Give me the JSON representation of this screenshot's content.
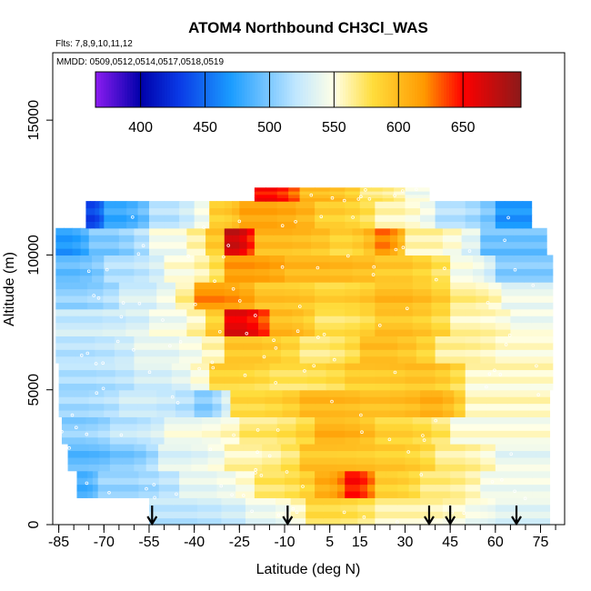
{
  "chart_data": {
    "type": "heatmap",
    "title": "ATOM4 Northbound CH3Cl_WAS",
    "annotations": {
      "flights": "Flts: 7,8,9,10,11,12",
      "dates": "MMDD: 0509,0512,0514,0517,0518,0519"
    },
    "xlabel": "Latitude (deg N)",
    "ylabel": "Altitude (m)",
    "xlim": [
      -87,
      83
    ],
    "ylim": [
      0,
      17500
    ],
    "x_ticks": [
      -85,
      -70,
      -55,
      -40,
      -25,
      -10,
      5,
      15,
      30,
      45,
      60,
      75
    ],
    "x_tick_labels": [
      "-85",
      "-70",
      "-55",
      "-40",
      "-25",
      "-10",
      "5",
      "15",
      "30",
      "45",
      "60",
      "75"
    ],
    "x_minor_step": 5,
    "y_ticks": [
      0,
      5000,
      10000,
      15000
    ],
    "y_tick_labels": [
      "0",
      "5000",
      "10000",
      "15000"
    ],
    "colorbar": {
      "range": [
        365,
        695
      ],
      "ticks": [
        400,
        450,
        500,
        550,
        600,
        650
      ],
      "tick_labels": [
        "400",
        "450",
        "500",
        "550",
        "600",
        "650"
      ],
      "colors": [
        "#8c1cf0",
        "#0000aa",
        "#0a3ae6",
        "#1a9cff",
        "#bfe6ff",
        "#ffffe6",
        "#ffdd3c",
        "#ff9900",
        "#ff0000",
        "#8c1a1a"
      ],
      "color_stops": [
        365,
        400,
        430,
        470,
        520,
        550,
        580,
        620,
        650,
        695
      ]
    },
    "arrows_x": [
      -54,
      -9,
      38,
      45,
      67
    ],
    "y_bins": [
      {
        "bottom": 0,
        "top": 1000,
        "segments": [
          [
            -55,
            -23,
            520
          ],
          [
            -23,
            -3,
            540
          ],
          [
            -3,
            20,
            580
          ],
          [
            20,
            50,
            560
          ],
          [
            50,
            60,
            545
          ],
          [
            60,
            78,
            535
          ]
        ]
      },
      {
        "bottom": 1000,
        "top": 2000,
        "segments": [
          [
            -79,
            -72,
            485
          ],
          [
            -72,
            -45,
            510
          ],
          [
            -45,
            -20,
            540
          ],
          [
            -20,
            0,
            575
          ],
          [
            0,
            10,
            610
          ],
          [
            10,
            20,
            650
          ],
          [
            20,
            35,
            590
          ],
          [
            35,
            55,
            570
          ],
          [
            55,
            78,
            545
          ]
        ]
      },
      {
        "bottom": 2000,
        "top": 3000,
        "segments": [
          [
            -82,
            -68,
            490
          ],
          [
            -68,
            -52,
            500
          ],
          [
            -52,
            -30,
            535
          ],
          [
            -30,
            -5,
            560
          ],
          [
            -5,
            20,
            595
          ],
          [
            20,
            40,
            590
          ],
          [
            40,
            60,
            565
          ],
          [
            60,
            78,
            540
          ]
        ]
      },
      {
        "bottom": 3000,
        "top": 4000,
        "segments": [
          [
            -84,
            -68,
            505
          ],
          [
            -68,
            -50,
            520
          ],
          [
            -50,
            -25,
            545
          ],
          [
            -25,
            0,
            570
          ],
          [
            0,
            20,
            605
          ],
          [
            20,
            45,
            585
          ],
          [
            45,
            78,
            550
          ]
        ]
      },
      {
        "bottom": 4000,
        "top": 5000,
        "segments": [
          [
            -85,
            -65,
            510
          ],
          [
            -65,
            -40,
            525
          ],
          [
            -40,
            -28,
            500
          ],
          [
            -28,
            -5,
            580
          ],
          [
            -5,
            15,
            600
          ],
          [
            15,
            35,
            595
          ],
          [
            35,
            50,
            605
          ],
          [
            50,
            78,
            555
          ]
        ]
      },
      {
        "bottom": 5000,
        "top": 6000,
        "segments": [
          [
            -85,
            -60,
            515
          ],
          [
            -60,
            -35,
            530
          ],
          [
            -35,
            -15,
            585
          ],
          [
            -15,
            10,
            575
          ],
          [
            10,
            30,
            590
          ],
          [
            30,
            50,
            595
          ],
          [
            50,
            79,
            555
          ]
        ]
      },
      {
        "bottom": 6000,
        "top": 7000,
        "segments": [
          [
            -86,
            -60,
            520
          ],
          [
            -60,
            -30,
            540
          ],
          [
            -30,
            -5,
            595
          ],
          [
            -5,
            15,
            570
          ],
          [
            15,
            40,
            600
          ],
          [
            40,
            60,
            565
          ],
          [
            60,
            79,
            555
          ]
        ]
      },
      {
        "bottom": 7000,
        "top": 8000,
        "segments": [
          [
            -86,
            -55,
            525
          ],
          [
            -55,
            -30,
            545
          ],
          [
            -30,
            -15,
            660
          ],
          [
            -15,
            0,
            600
          ],
          [
            0,
            20,
            575
          ],
          [
            20,
            45,
            595
          ],
          [
            45,
            65,
            560
          ],
          [
            65,
            79,
            545
          ]
        ]
      },
      {
        "bottom": 8000,
        "top": 9000,
        "segments": [
          [
            -86,
            -65,
            505
          ],
          [
            -65,
            -40,
            530
          ],
          [
            -40,
            -20,
            620
          ],
          [
            -20,
            0,
            595
          ],
          [
            0,
            20,
            585
          ],
          [
            20,
            45,
            600
          ],
          [
            45,
            62,
            565
          ],
          [
            62,
            79,
            540
          ]
        ]
      },
      {
        "bottom": 9000,
        "top": 10000,
        "segments": [
          [
            -86,
            -70,
            490
          ],
          [
            -70,
            -50,
            515
          ],
          [
            -50,
            -30,
            550
          ],
          [
            -30,
            -10,
            615
          ],
          [
            -10,
            20,
            600
          ],
          [
            20,
            45,
            590
          ],
          [
            45,
            60,
            545
          ],
          [
            60,
            79,
            500
          ]
        ]
      },
      {
        "bottom": 10000,
        "top": 11000,
        "segments": [
          [
            -86,
            -75,
            470
          ],
          [
            -75,
            -55,
            500
          ],
          [
            -55,
            -30,
            545
          ],
          [
            -30,
            -20,
            670
          ],
          [
            -20,
            5,
            600
          ],
          [
            5,
            20,
            585
          ],
          [
            20,
            30,
            625
          ],
          [
            30,
            55,
            560
          ],
          [
            55,
            77,
            495
          ]
        ]
      },
      {
        "bottom": 11000,
        "top": 12000,
        "segments": [
          [
            -76,
            -70,
            435
          ],
          [
            -70,
            -55,
            480
          ],
          [
            -55,
            -35,
            520
          ],
          [
            -35,
            -25,
            590
          ],
          [
            -25,
            0,
            615
          ],
          [
            0,
            20,
            590
          ],
          [
            20,
            40,
            560
          ],
          [
            40,
            60,
            520
          ],
          [
            60,
            72,
            470
          ]
        ]
      },
      {
        "bottom": 12000,
        "top": 12500,
        "segments": [
          [
            -20,
            -5,
            650
          ],
          [
            -5,
            15,
            600
          ],
          [
            15,
            30,
            570
          ],
          [
            30,
            38,
            545
          ]
        ]
      }
    ]
  }
}
